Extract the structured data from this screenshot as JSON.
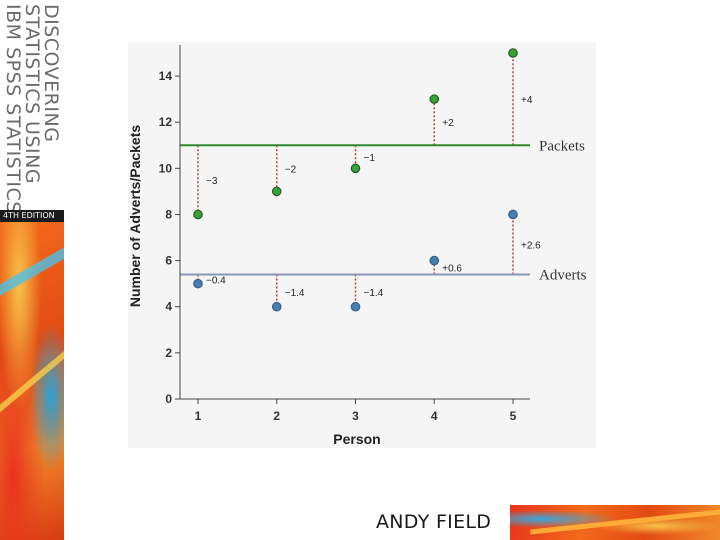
{
  "cover": {
    "spine_lines": [
      "DISCOVERING",
      "STATISTICS USING",
      "IBM SPSS STATISTICS"
    ],
    "edition": "4TH EDITION",
    "author": "ANDY FIELD"
  },
  "colors": {
    "packets": "#2d8a2d",
    "packets_point": "#3aa03a",
    "adverts": "#4a7fb0",
    "adverts_line": "#8a98b8",
    "residual": "#c0392b"
  },
  "chart_data": {
    "type": "scatter",
    "xlabel": "Person",
    "ylabel": "Number of Adverts/Packets",
    "xticks": [
      1,
      2,
      3,
      4,
      5
    ],
    "yticks": [
      0,
      2,
      4,
      6,
      8,
      10,
      12,
      14
    ],
    "ylim": [
      0,
      15
    ],
    "grid": false,
    "series": [
      {
        "name": "Packets",
        "mean": 11,
        "x": [
          1,
          2,
          3,
          4,
          5
        ],
        "values": [
          8,
          9,
          10,
          13,
          15
        ],
        "deviation_labels": [
          "−3",
          "−2",
          "−1",
          "+2",
          "+4"
        ]
      },
      {
        "name": "Adverts",
        "mean": 5.4,
        "x": [
          1,
          2,
          3,
          4,
          5
        ],
        "values": [
          5,
          4,
          4,
          6,
          8
        ],
        "deviation_labels": [
          "−0.4",
          "−1.4",
          "−1.4",
          "+0.6",
          "+2.6"
        ]
      }
    ]
  }
}
